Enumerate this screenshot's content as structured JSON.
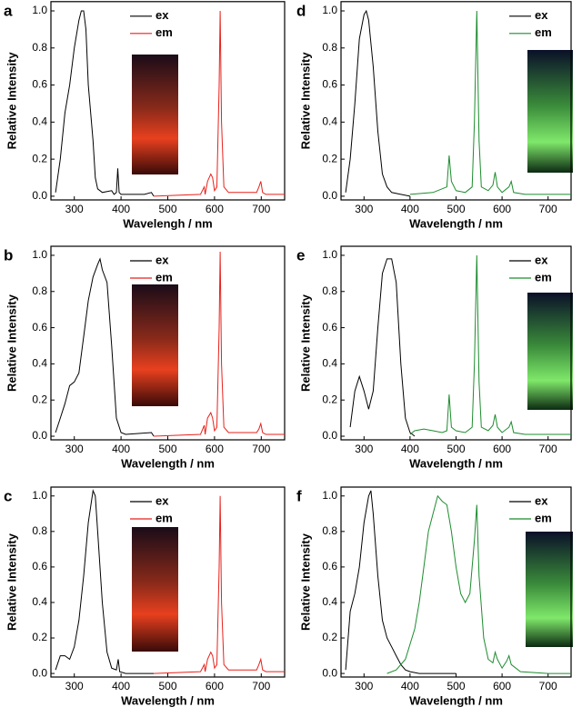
{
  "chart_data": [
    {
      "type": "line",
      "panel_label": "a",
      "xlabel": "Wavelengh / nm",
      "ylabel": "Relative Intensity",
      "xlim": [
        250,
        750
      ],
      "xticks": [
        300,
        400,
        500,
        600,
        700
      ],
      "ylim": [
        -0.02,
        1.05
      ],
      "yticks": [
        {
          "value": 0,
          "label": "0.0"
        },
        0.2,
        0.4,
        0.6,
        0.8,
        {
          "value": 1,
          "label": "1.0"
        }
      ],
      "legend": "upper center",
      "series": [
        {
          "name": "ex",
          "color": "#000000",
          "x": [
            260,
            270,
            280,
            290,
            300,
            310,
            315,
            320,
            325,
            330,
            340,
            345,
            350,
            360,
            380,
            385,
            390,
            393,
            396,
            400,
            450,
            465,
            470
          ],
          "values": [
            0.02,
            0.2,
            0.45,
            0.6,
            0.8,
            0.95,
            1.0,
            1.0,
            0.9,
            0.6,
            0.3,
            0.1,
            0.04,
            0.02,
            0.03,
            0.01,
            0.02,
            0.15,
            0.02,
            0.01,
            0.01,
            0.02,
            0
          ]
        },
        {
          "name": "em",
          "color": "#e8211b",
          "x": [
            470,
            570,
            578,
            580,
            585,
            592,
            596,
            600,
            605,
            610,
            612,
            615,
            620,
            630,
            650,
            690,
            695,
            699,
            703,
            710,
            750
          ],
          "values": [
            0,
            0.01,
            0.05,
            0.01,
            0.08,
            0.12,
            0.1,
            0.03,
            0.05,
            0.6,
            1.0,
            0.4,
            0.05,
            0.02,
            0.02,
            0.02,
            0.05,
            0.08,
            0.02,
            0.01,
            0.01
          ]
        }
      ]
    },
    {
      "type": "line",
      "panel_label": "b",
      "xlabel": "Wavelength / nm",
      "ylabel": "Relative Intensity",
      "xlim": [
        250,
        750
      ],
      "xticks": [
        300,
        400,
        500,
        600,
        700
      ],
      "ylim": [
        -0.02,
        1.05
      ],
      "yticks": [
        {
          "value": 0,
          "label": "0.0"
        },
        0.2,
        0.4,
        0.6,
        0.8,
        {
          "value": 1,
          "label": "1.0"
        }
      ],
      "legend": "upper center",
      "series": [
        {
          "name": "ex",
          "color": "#000000",
          "x": [
            260,
            270,
            280,
            290,
            300,
            310,
            320,
            330,
            340,
            350,
            355,
            360,
            370,
            380,
            390,
            400,
            410,
            465,
            470
          ],
          "values": [
            0.02,
            0.1,
            0.18,
            0.28,
            0.3,
            0.35,
            0.55,
            0.75,
            0.88,
            0.95,
            0.98,
            0.92,
            0.85,
            0.5,
            0.1,
            0.02,
            0.01,
            0.02,
            0
          ]
        },
        {
          "name": "em",
          "color": "#e8211b",
          "x": [
            470,
            570,
            578,
            580,
            585,
            592,
            596,
            600,
            605,
            610,
            612,
            615,
            620,
            630,
            650,
            690,
            695,
            699,
            703,
            710,
            750
          ],
          "values": [
            0,
            0.01,
            0.06,
            0.01,
            0.1,
            0.13,
            0.1,
            0.03,
            0.05,
            0.6,
            1.02,
            0.4,
            0.05,
            0.02,
            0.02,
            0.02,
            0.04,
            0.07,
            0.02,
            0.01,
            0.01
          ]
        }
      ]
    },
    {
      "type": "line",
      "panel_label": "c",
      "xlabel": "Wavelength / nm",
      "ylabel": "Relative Intensity",
      "xlim": [
        250,
        750
      ],
      "xticks": [
        300,
        400,
        500,
        600,
        700
      ],
      "ylim": [
        -0.02,
        1.05
      ],
      "yticks": [
        {
          "value": 0,
          "label": "0.0"
        },
        0.2,
        0.4,
        0.6,
        0.8,
        {
          "value": 1,
          "label": "1.0"
        }
      ],
      "legend": "upper center",
      "series": [
        {
          "name": "ex",
          "color": "#000000",
          "x": [
            260,
            270,
            280,
            290,
            300,
            310,
            320,
            330,
            340,
            345,
            350,
            360,
            370,
            380,
            390,
            394,
            397,
            410,
            470
          ],
          "values": [
            0.02,
            0.1,
            0.1,
            0.08,
            0.15,
            0.3,
            0.55,
            0.85,
            1.03,
            1.0,
            0.8,
            0.4,
            0.12,
            0.03,
            0.02,
            0.08,
            0.01,
            0,
            0
          ]
        },
        {
          "name": "em",
          "color": "#e8211b",
          "x": [
            470,
            570,
            578,
            580,
            585,
            592,
            596,
            600,
            605,
            610,
            612,
            615,
            620,
            630,
            650,
            690,
            695,
            699,
            703,
            710,
            750
          ],
          "values": [
            0,
            0.01,
            0.05,
            0.01,
            0.08,
            0.12,
            0.1,
            0.03,
            0.05,
            0.6,
            1.0,
            0.4,
            0.05,
            0.02,
            0.02,
            0.02,
            0.05,
            0.08,
            0.02,
            0.01,
            0.01
          ]
        }
      ]
    },
    {
      "type": "line",
      "panel_label": "d",
      "xlabel": "Wavelength / nm",
      "ylabel": "Relative Intensity",
      "xlim": [
        250,
        750
      ],
      "xticks": [
        300,
        400,
        500,
        600,
        700
      ],
      "ylim": [
        -0.02,
        1.05
      ],
      "yticks": [
        {
          "value": 0,
          "label": "0.0"
        },
        0.2,
        0.4,
        0.6,
        0.8,
        {
          "value": 1,
          "label": "1.0"
        }
      ],
      "legend": "upper right",
      "series": [
        {
          "name": "ex",
          "color": "#000000",
          "x": [
            260,
            270,
            280,
            290,
            300,
            305,
            310,
            320,
            330,
            340,
            350,
            360,
            380,
            400
          ],
          "values": [
            0.02,
            0.2,
            0.5,
            0.85,
            0.98,
            1.0,
            0.95,
            0.7,
            0.35,
            0.12,
            0.05,
            0.02,
            0.01,
            0
          ]
        },
        {
          "name": "em",
          "color": "#1d8c2e",
          "x": [
            400,
            450,
            480,
            485,
            490,
            500,
            520,
            535,
            540,
            545,
            550,
            555,
            570,
            580,
            585,
            590,
            600,
            615,
            620,
            625,
            650,
            750
          ],
          "values": [
            0.01,
            0.02,
            0.05,
            0.22,
            0.08,
            0.03,
            0.02,
            0.05,
            0.4,
            1.0,
            0.3,
            0.05,
            0.03,
            0.06,
            0.13,
            0.05,
            0.02,
            0.05,
            0.08,
            0.02,
            0.01,
            0.01
          ]
        }
      ]
    },
    {
      "type": "line",
      "panel_label": "e",
      "xlabel": "Wavelength / nm",
      "ylabel": "Relative Intensity",
      "xlim": [
        250,
        750
      ],
      "xticks": [
        300,
        400,
        500,
        600,
        700
      ],
      "ylim": [
        -0.02,
        1.05
      ],
      "yticks": [
        {
          "value": 0,
          "label": "0.0"
        },
        0.2,
        0.4,
        0.6,
        0.8,
        {
          "value": 1,
          "label": "1.0"
        }
      ],
      "legend": "upper right",
      "series": [
        {
          "name": "ex",
          "color": "#000000",
          "x": [
            270,
            280,
            290,
            300,
            310,
            320,
            330,
            340,
            350,
            360,
            370,
            380,
            390,
            400,
            410
          ],
          "values": [
            0.05,
            0.25,
            0.33,
            0.25,
            0.15,
            0.25,
            0.6,
            0.9,
            0.98,
            0.98,
            0.85,
            0.4,
            0.1,
            0.02,
            0
          ]
        },
        {
          "name": "em",
          "color": "#1d8c2e",
          "x": [
            400,
            410,
            430,
            450,
            470,
            480,
            485,
            490,
            500,
            520,
            535,
            540,
            545,
            550,
            555,
            570,
            580,
            585,
            590,
            600,
            615,
            620,
            625,
            650,
            750
          ],
          "values": [
            0.01,
            0.03,
            0.04,
            0.03,
            0.02,
            0.03,
            0.23,
            0.05,
            0.03,
            0.02,
            0.05,
            0.4,
            1.0,
            0.3,
            0.05,
            0.03,
            0.06,
            0.12,
            0.05,
            0.02,
            0.05,
            0.08,
            0.02,
            0.01,
            0.01
          ]
        }
      ]
    },
    {
      "type": "line",
      "panel_label": "f",
      "xlabel": "Wavelength / nm",
      "ylabel": "Relative Intensity",
      "xlim": [
        250,
        750
      ],
      "xticks": [
        300,
        400,
        500,
        600,
        700
      ],
      "ylim": [
        -0.02,
        1.05
      ],
      "yticks": [
        {
          "value": 0,
          "label": "0.0"
        },
        0.2,
        0.4,
        0.6,
        0.8,
        {
          "value": 1,
          "label": "1.0"
        }
      ],
      "legend": "upper right",
      "series": [
        {
          "name": "ex",
          "color": "#000000",
          "x": [
            260,
            270,
            280,
            290,
            300,
            310,
            315,
            320,
            330,
            340,
            350,
            360,
            370,
            380,
            390,
            400,
            420,
            500
          ],
          "values": [
            0.02,
            0.35,
            0.45,
            0.6,
            0.85,
            1.0,
            1.03,
            0.9,
            0.55,
            0.3,
            0.2,
            0.15,
            0.1,
            0.05,
            0.02,
            0.01,
            0,
            0
          ]
        },
        {
          "name": "em",
          "color": "#1d8c2e",
          "x": [
            350,
            370,
            390,
            410,
            420,
            430,
            440,
            450,
            460,
            470,
            480,
            490,
            500,
            510,
            520,
            530,
            540,
            545,
            550,
            560,
            570,
            580,
            585,
            590,
            600,
            610,
            615,
            620,
            640,
            700,
            750
          ],
          "values": [
            0,
            0.02,
            0.08,
            0.25,
            0.4,
            0.6,
            0.8,
            0.9,
            1.0,
            0.97,
            0.95,
            0.8,
            0.6,
            0.45,
            0.4,
            0.45,
            0.75,
            0.95,
            0.55,
            0.2,
            0.08,
            0.06,
            0.12,
            0.08,
            0.03,
            0.07,
            0.1,
            0.05,
            0.01,
            0,
            0
          ]
        }
      ]
    }
  ]
}
